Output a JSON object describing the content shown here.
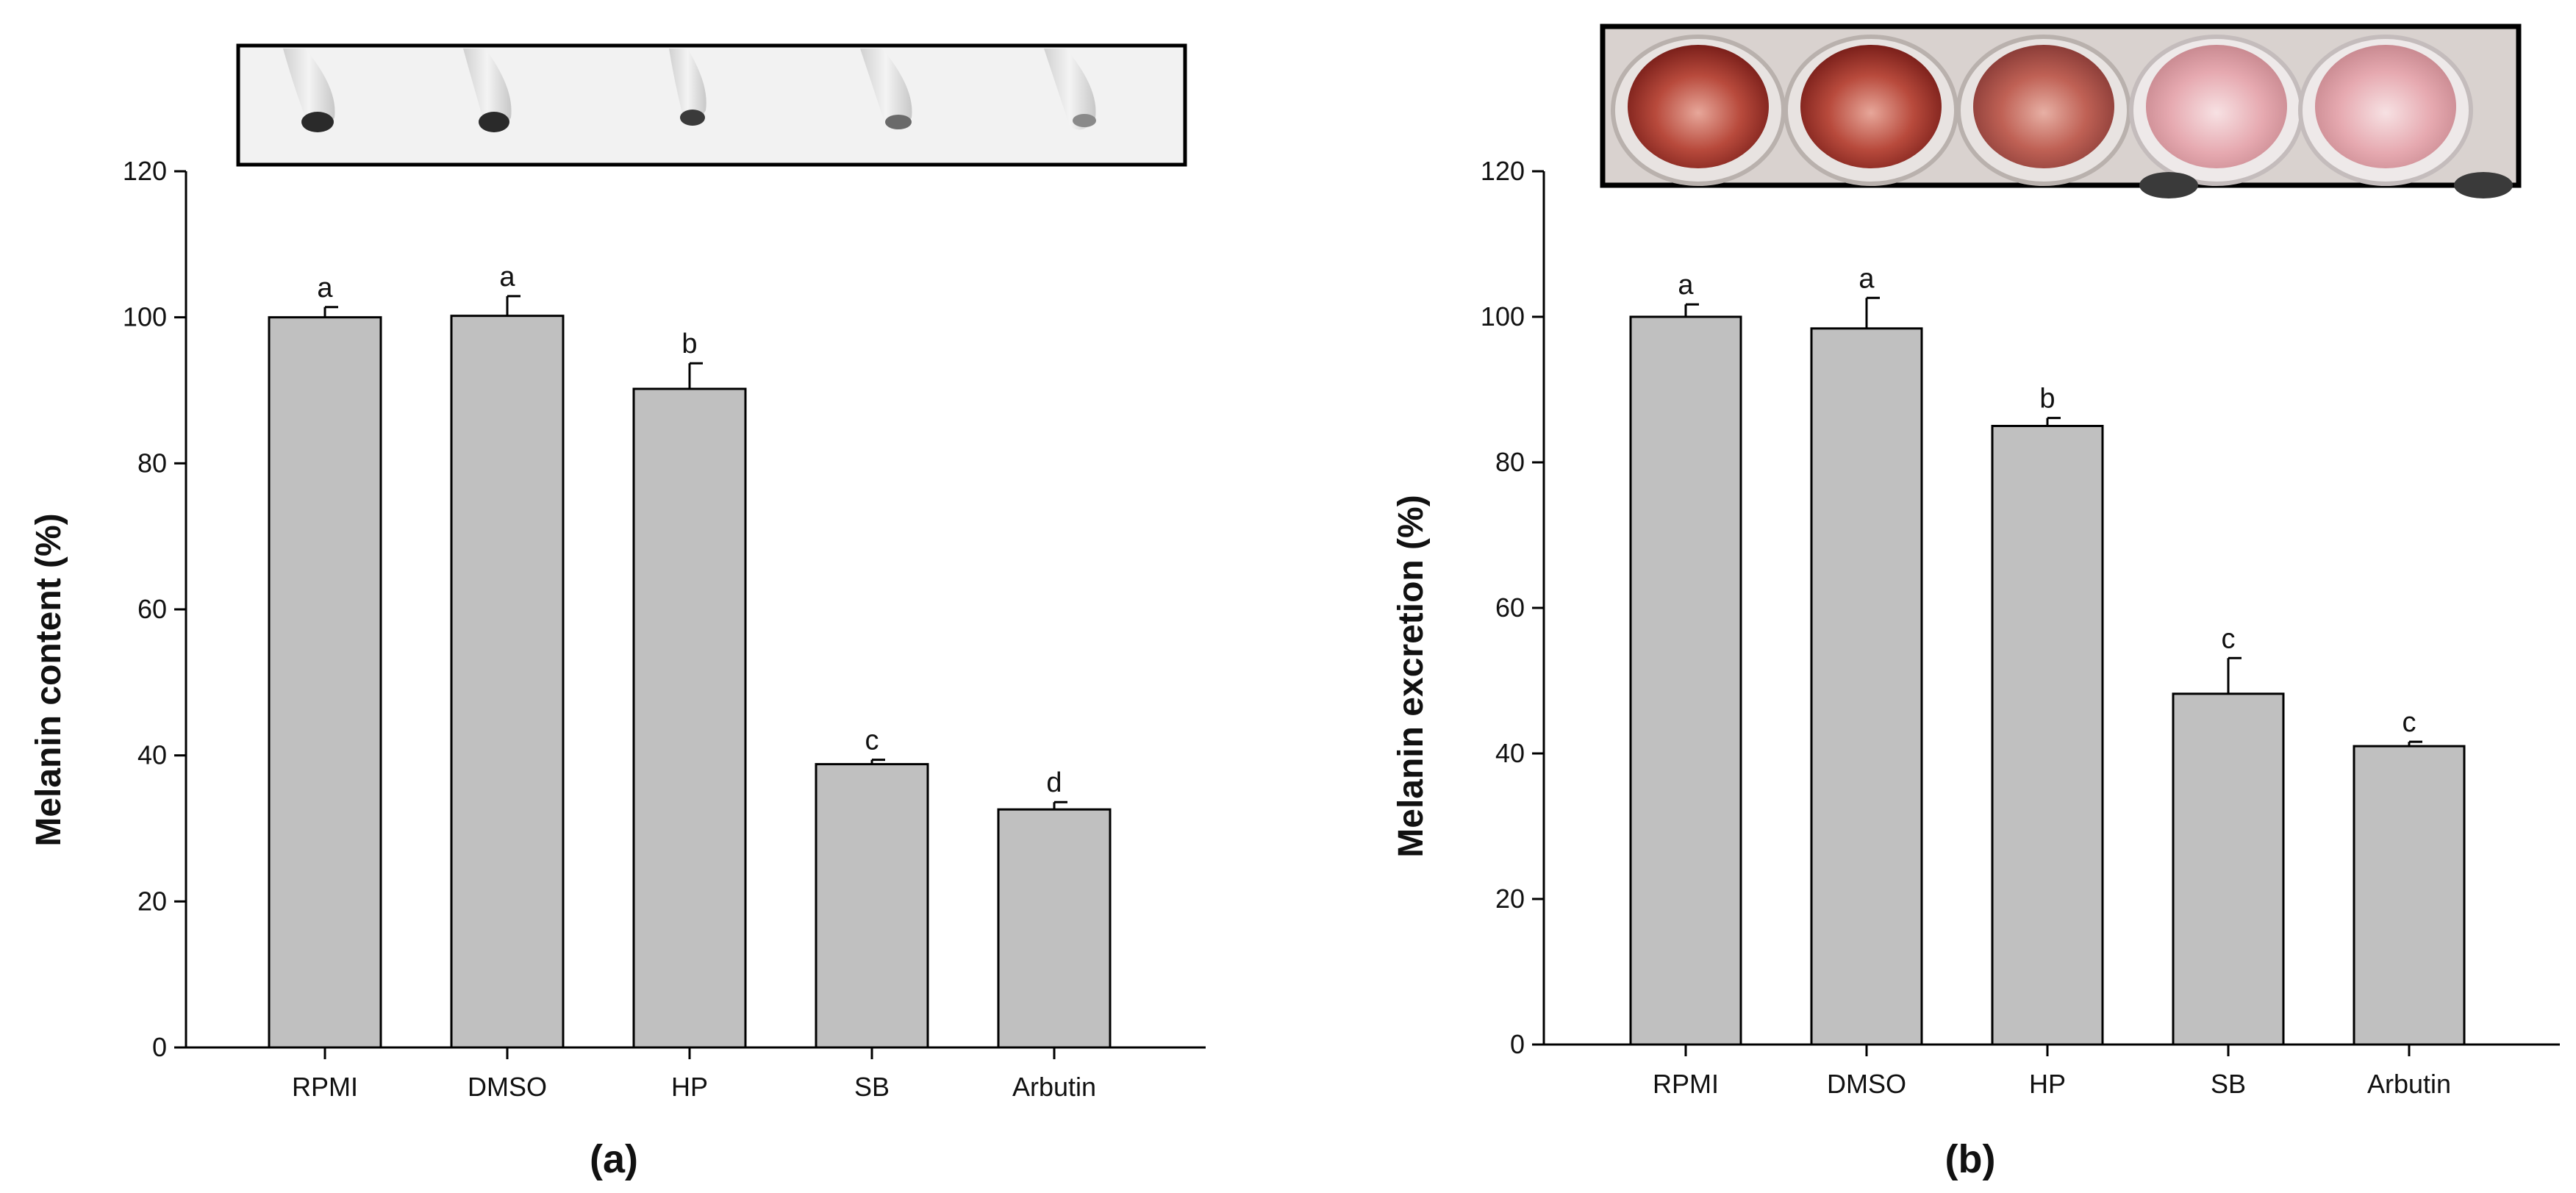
{
  "colors": {
    "bar": "#c0c0c0",
    "axis": "#000000"
  },
  "chart_data": [
    {
      "type": "bar",
      "panel": "(a)",
      "title": "",
      "xlabel": "",
      "ylabel": "Melanin content (%)",
      "ylim": [
        0,
        120
      ],
      "yticks": [
        0,
        20,
        40,
        60,
        80,
        100,
        120
      ],
      "categories": [
        "RPMI",
        "DMSO",
        "HP",
        "SB",
        "Arbutin"
      ],
      "values": [
        100,
        100.2,
        90.2,
        38.8,
        32.6
      ],
      "errors": [
        1.4,
        2.7,
        3.5,
        0.6,
        1.0
      ],
      "significance": [
        "a",
        "a",
        "b",
        "c",
        "d"
      ],
      "inset_image": "pellet-tubes-photo"
    },
    {
      "type": "bar",
      "panel": "(b)",
      "title": "",
      "xlabel": "",
      "ylabel": "Melanin excretion (%)",
      "ylim": [
        0,
        120
      ],
      "yticks": [
        0,
        20,
        40,
        60,
        80,
        100,
        120
      ],
      "categories": [
        "RPMI",
        "DMSO",
        "HP",
        "SB",
        "Arbutin"
      ],
      "values": [
        100,
        98.4,
        85,
        48.2,
        41
      ],
      "errors": [
        1.7,
        4.2,
        1.1,
        4.9,
        0.6
      ],
      "significance": [
        "a",
        "a",
        "b",
        "c",
        "c"
      ],
      "inset_image": "culture-wells-photo"
    }
  ]
}
